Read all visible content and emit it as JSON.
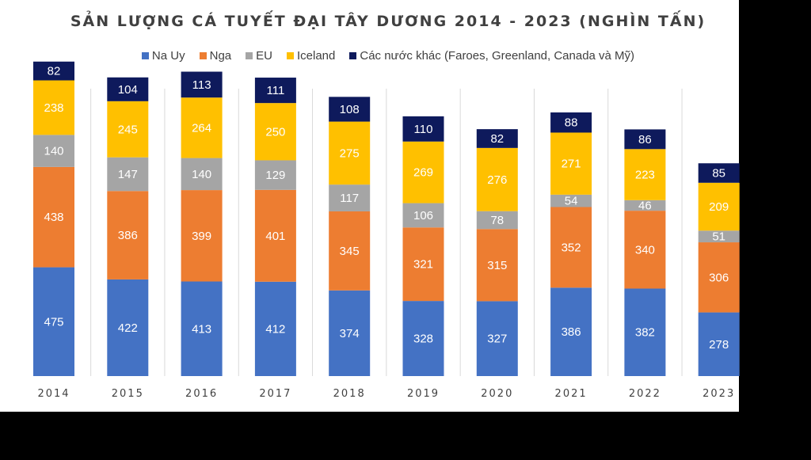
{
  "chart_data": {
    "type": "stacked-bar",
    "title": "SẢN LƯỢNG CÁ TUYẾT ĐẠI TÂY DƯƠNG 2014 - 2023 (NGHÌN TẤN)",
    "categories": [
      "2014",
      "2015",
      "2016",
      "2017",
      "2018",
      "2019",
      "2020",
      "2021",
      "2022",
      "2023"
    ],
    "series": [
      {
        "name": "Na Uy",
        "color": "#4472C4",
        "label_color": "#ffffff",
        "values": [
          475,
          422,
          413,
          412,
          374,
          328,
          327,
          386,
          382,
          278
        ]
      },
      {
        "name": "Nga",
        "color": "#ED7D31",
        "label_color": "#ffffff",
        "values": [
          438,
          386,
          399,
          401,
          345,
          321,
          315,
          352,
          340,
          306
        ]
      },
      {
        "name": "EU",
        "color": "#A5A5A5",
        "label_color": "#ffffff",
        "values": [
          140,
          147,
          140,
          129,
          117,
          106,
          78,
          54,
          46,
          51
        ]
      },
      {
        "name": "Iceland",
        "color": "#FFC000",
        "label_color": "#ffffff",
        "values": [
          238,
          245,
          264,
          250,
          275,
          269,
          276,
          271,
          223,
          209
        ]
      },
      {
        "name": "Các nước khác (Faroes, Greenland, Canada và Mỹ)",
        "color": "#0E1A5C",
        "label_color": "#ffffff",
        "values": [
          82,
          104,
          113,
          111,
          108,
          110,
          82,
          88,
          86,
          85
        ]
      }
    ],
    "xlabel": "",
    "ylabel": "",
    "ylim": [
      0,
      1500
    ],
    "grid": "vertical separators",
    "legend_position": "top"
  }
}
